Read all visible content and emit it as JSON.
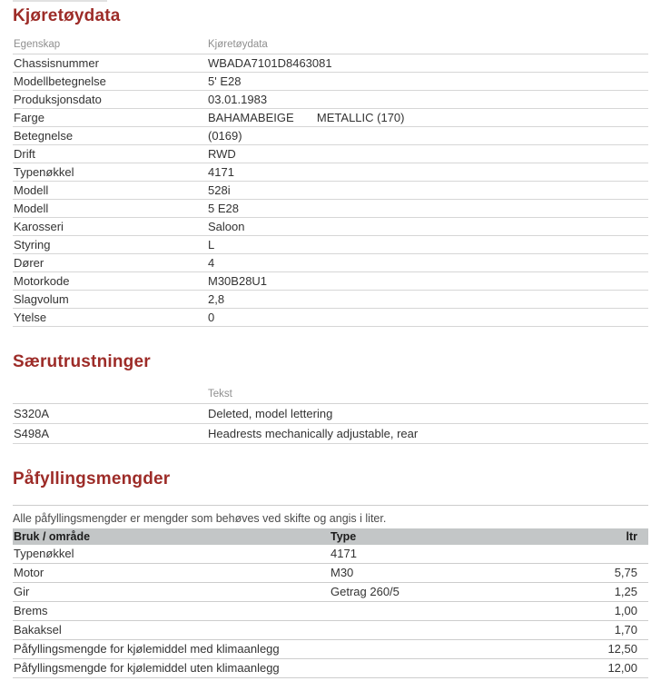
{
  "colors": {
    "section_title": "#9d2c28",
    "header_label_gray": "#8f8f8f",
    "band_header_bg": "#c3c6c7",
    "row_border": "#d6d6d6",
    "body_text": "#333333"
  },
  "sections": [
    {
      "title": "Kjøretøydata",
      "table": {
        "headers": [
          "Egenskap",
          "Kjøretøydata"
        ],
        "rows": [
          [
            "Chassisnummer",
            "WBADA7101D8463081"
          ],
          [
            "Modellbetegnelse",
            "5' E28"
          ],
          [
            "Produksjonsdato",
            "03.01.1983"
          ],
          [
            "Farge",
            "BAHAMABEIGE       METALLIC (170)"
          ],
          [
            "Betegnelse",
            "(0169)"
          ],
          [
            "Drift",
            "RWD"
          ],
          [
            "Typenøkkel",
            "4171"
          ],
          [
            "Modell",
            "528i"
          ],
          [
            "Modell",
            "5 E28"
          ],
          [
            "Karosseri",
            "Saloon"
          ],
          [
            "Styring",
            "L"
          ],
          [
            "Dører",
            "4"
          ],
          [
            "Motorkode",
            "M30B28U1"
          ],
          [
            "Slagvolum",
            "2,8"
          ],
          [
            "Ytelse",
            "0"
          ]
        ]
      }
    },
    {
      "title": "Særutrustninger",
      "table": {
        "headers": [
          "",
          "Tekst"
        ],
        "rows": [
          [
            "S320A",
            "Deleted, model lettering"
          ],
          [
            "S498A",
            "Headrests mechanically adjustable, rear"
          ]
        ]
      }
    },
    {
      "title": "Påfyllingsmengder",
      "note": "Alle påfyllingsmengder er mengder som behøves ved skifte og angis i liter.",
      "table": {
        "headers": [
          "Bruk / område",
          "Type",
          "ltr"
        ],
        "rows": [
          [
            "Typenøkkel",
            "4171",
            ""
          ],
          [
            "Motor",
            "M30",
            "5,75"
          ],
          [
            "Gir",
            "Getrag 260/5",
            "1,25"
          ],
          [
            "Brems",
            "",
            "1,00"
          ],
          [
            "Bakaksel",
            "",
            "1,70"
          ],
          [
            "Påfyllingsmengde for kjølemiddel med klimaanlegg",
            "",
            "12,50"
          ],
          [
            "Påfyllingsmengde for kjølemiddel uten klimaanlegg",
            "",
            "12,00"
          ]
        ]
      }
    }
  ]
}
